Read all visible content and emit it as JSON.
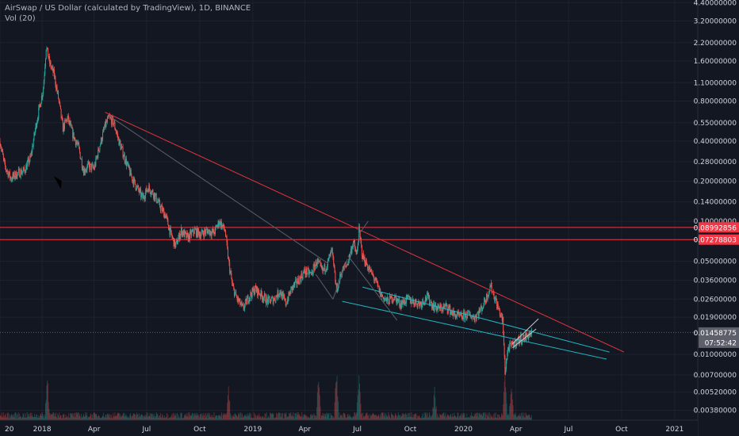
{
  "header": {
    "symbol": "AirSwap / US Dollar (calculated by TradingView), 1D, BINANCE",
    "volume_indicator": "Vol (20)"
  },
  "colors": {
    "background": "#131722",
    "grid": "#1e222d",
    "up": "#26a69a",
    "down": "#ef5350",
    "text": "#b2b5be",
    "axis_text": "#d1d4dc",
    "resistance_line": "#e0353b",
    "trend_line": "#b0b3bb",
    "channel_line": "#1fb5c2",
    "price_badge": "#5d606b",
    "level_badge": "#f23645"
  },
  "chart_data": {
    "type": "candlestick",
    "y_scale": "log",
    "ylim": [
      0.0032,
      4.6
    ],
    "xlim": [
      "2017-10-20",
      "2021-02-10"
    ],
    "x_tick_labels": [
      {
        "label": "20",
        "date": "2017-10-20"
      },
      {
        "label": "2018",
        "date": "2018-01-01"
      },
      {
        "label": "Apr",
        "date": "2018-04-01"
      },
      {
        "label": "Jul",
        "date": "2018-07-01"
      },
      {
        "label": "Oct",
        "date": "2018-10-01"
      },
      {
        "label": "2019",
        "date": "2019-01-01"
      },
      {
        "label": "Apr",
        "date": "2019-04-01"
      },
      {
        "label": "Jul",
        "date": "2019-07-01"
      },
      {
        "label": "Oct",
        "date": "2019-10-01"
      },
      {
        "label": "2020",
        "date": "2020-01-01"
      },
      {
        "label": "Apr",
        "date": "2020-04-01"
      },
      {
        "label": "Jul",
        "date": "2020-07-01"
      },
      {
        "label": "Oct",
        "date": "2020-10-01"
      },
      {
        "label": "2021",
        "date": "2021-01-01"
      }
    ],
    "y_tick_labels": [
      {
        "label": "4.40000000",
        "value": 4.4
      },
      {
        "label": "3.20000000",
        "value": 3.2
      },
      {
        "label": "2.20000000",
        "value": 2.2
      },
      {
        "label": "1.60000000",
        "value": 1.6
      },
      {
        "label": "1.10000000",
        "value": 1.1
      },
      {
        "label": "0.80000000",
        "value": 0.8
      },
      {
        "label": "0.55000000",
        "value": 0.55
      },
      {
        "label": "0.40000000",
        "value": 0.4
      },
      {
        "label": "0.28000000",
        "value": 0.28
      },
      {
        "label": "0.20000000",
        "value": 0.2
      },
      {
        "label": "0.14000000",
        "value": 0.14
      },
      {
        "label": "0.10000000",
        "value": 0.1
      },
      {
        "label": "0.05000000",
        "value": 0.05
      },
      {
        "label": "0.03600000",
        "value": 0.036
      },
      {
        "label": "0.02600000",
        "value": 0.026
      },
      {
        "label": "0.01900000",
        "value": 0.019
      },
      {
        "label": "0.01000000",
        "value": 0.01
      },
      {
        "label": "0.00700000",
        "value": 0.007
      },
      {
        "label": "0.00520000",
        "value": 0.0052
      },
      {
        "label": "0.00380000",
        "value": 0.0038
      }
    ],
    "price_path": [
      [
        "2017-10-20",
        0.4
      ],
      [
        "2017-10-28",
        0.26
      ],
      [
        "2017-11-08",
        0.21
      ],
      [
        "2017-11-20",
        0.23
      ],
      [
        "2017-12-01",
        0.24
      ],
      [
        "2017-12-12",
        0.3
      ],
      [
        "2017-12-22",
        0.55
      ],
      [
        "2018-01-03",
        1.0
      ],
      [
        "2018-01-08",
        2.05
      ],
      [
        "2018-01-14",
        1.55
      ],
      [
        "2018-01-22",
        1.25
      ],
      [
        "2018-01-30",
        0.8
      ],
      [
        "2018-02-06",
        0.5
      ],
      [
        "2018-02-14",
        0.6
      ],
      [
        "2018-02-24",
        0.44
      ],
      [
        "2018-03-05",
        0.36
      ],
      [
        "2018-03-14",
        0.24
      ],
      [
        "2018-03-22",
        0.26
      ],
      [
        "2018-04-01",
        0.25
      ],
      [
        "2018-04-10",
        0.36
      ],
      [
        "2018-04-20",
        0.52
      ],
      [
        "2018-04-27",
        0.6
      ],
      [
        "2018-05-05",
        0.55
      ],
      [
        "2018-05-14",
        0.4
      ],
      [
        "2018-05-24",
        0.3
      ],
      [
        "2018-06-04",
        0.22
      ],
      [
        "2018-06-14",
        0.18
      ],
      [
        "2018-06-24",
        0.15
      ],
      [
        "2018-07-04",
        0.18
      ],
      [
        "2018-07-14",
        0.16
      ],
      [
        "2018-07-24",
        0.13
      ],
      [
        "2018-08-03",
        0.11
      ],
      [
        "2018-08-12",
        0.08
      ],
      [
        "2018-08-20",
        0.065
      ],
      [
        "2018-08-30",
        0.085
      ],
      [
        "2018-09-10",
        0.075
      ],
      [
        "2018-09-22",
        0.085
      ],
      [
        "2018-10-02",
        0.08
      ],
      [
        "2018-10-14",
        0.085
      ],
      [
        "2018-10-26",
        0.082
      ],
      [
        "2018-11-04",
        0.1
      ],
      [
        "2018-11-14",
        0.085
      ],
      [
        "2018-11-20",
        0.05
      ],
      [
        "2018-11-27",
        0.032
      ],
      [
        "2018-12-05",
        0.026
      ],
      [
        "2018-12-15",
        0.022
      ],
      [
        "2018-12-25",
        0.027
      ],
      [
        "2019-01-05",
        0.031
      ],
      [
        "2019-01-16",
        0.028
      ],
      [
        "2019-01-27",
        0.025
      ],
      [
        "2019-02-07",
        0.026
      ],
      [
        "2019-02-17",
        0.03
      ],
      [
        "2019-02-27",
        0.024
      ],
      [
        "2019-03-09",
        0.031
      ],
      [
        "2019-03-21",
        0.036
      ],
      [
        "2019-04-01",
        0.042
      ],
      [
        "2019-04-12",
        0.04
      ],
      [
        "2019-04-22",
        0.05
      ],
      [
        "2019-05-02",
        0.042
      ],
      [
        "2019-05-10",
        0.048
      ],
      [
        "2019-05-18",
        0.06
      ],
      [
        "2019-05-26",
        0.03
      ],
      [
        "2019-06-04",
        0.042
      ],
      [
        "2019-06-14",
        0.048
      ],
      [
        "2019-06-24",
        0.07
      ],
      [
        "2019-06-30",
        0.055
      ],
      [
        "2019-07-04",
        0.085
      ],
      [
        "2019-07-10",
        0.055
      ],
      [
        "2019-07-20",
        0.045
      ],
      [
        "2019-08-01",
        0.036
      ],
      [
        "2019-08-11",
        0.028
      ],
      [
        "2019-08-22",
        0.025
      ],
      [
        "2019-09-02",
        0.027
      ],
      [
        "2019-09-14",
        0.024
      ],
      [
        "2019-09-26",
        0.026
      ],
      [
        "2019-10-06",
        0.025
      ],
      [
        "2019-10-18",
        0.024
      ],
      [
        "2019-10-30",
        0.027
      ],
      [
        "2019-11-10",
        0.023
      ],
      [
        "2019-11-22",
        0.022
      ],
      [
        "2019-12-03",
        0.023
      ],
      [
        "2019-12-15",
        0.02
      ],
      [
        "2019-12-27",
        0.019
      ],
      [
        "2020-01-08",
        0.02
      ],
      [
        "2020-01-20",
        0.019
      ],
      [
        "2020-02-01",
        0.022
      ],
      [
        "2020-02-10",
        0.027
      ],
      [
        "2020-02-17",
        0.033
      ],
      [
        "2020-02-24",
        0.027
      ],
      [
        "2020-03-03",
        0.021
      ],
      [
        "2020-03-09",
        0.018
      ],
      [
        "2020-03-13",
        0.0075
      ],
      [
        "2020-03-18",
        0.011
      ],
      [
        "2020-03-28",
        0.012
      ],
      [
        "2020-04-08",
        0.013
      ],
      [
        "2020-04-18",
        0.0135
      ],
      [
        "2020-04-28",
        0.0146
      ]
    ],
    "volume_spikes": [
      [
        "2018-01-10",
        0.9
      ],
      [
        "2019-04-25",
        0.8
      ],
      [
        "2019-05-26",
        0.95
      ],
      [
        "2019-07-04",
        0.9
      ],
      [
        "2019-11-12",
        0.5
      ],
      [
        "2020-03-13",
        1.0
      ],
      [
        "2020-03-24",
        0.75
      ],
      [
        "2018-11-20",
        0.55
      ]
    ],
    "horizontal_levels": [
      {
        "value": 0.08992856,
        "label": "0.08992856"
      },
      {
        "value": 0.07278803,
        "label": "0.07278803"
      }
    ],
    "last_price": {
      "value": 0.01458775,
      "label": "0.01458775",
      "countdown": "07:52:42"
    },
    "drawings": [
      {
        "name": "resistance-trendline",
        "color": "#e0353b",
        "from": [
          "2018-04-20",
          0.66
        ],
        "to": [
          "2020-10-05",
          0.0104
        ]
      },
      {
        "name": "upper-channel-line",
        "color": "#1fb5c2",
        "from": [
          "2019-07-10",
          0.032
        ],
        "to": [
          "2020-09-10",
          0.0104
        ]
      },
      {
        "name": "lower-channel-line",
        "color": "#1fb5c2",
        "from": [
          "2019-06-05",
          0.025
        ],
        "to": [
          "2020-09-05",
          0.0092
        ]
      },
      {
        "name": "early-descending-line",
        "color": "#5a5e68",
        "from": [
          "2018-04-27",
          0.62
        ],
        "to": [
          "2019-05-12",
          0.048
        ]
      },
      {
        "name": "channel-bottom-line",
        "color": "#5a5e68",
        "from": [
          "2019-06-15",
          0.055
        ],
        "to": [
          "2019-09-08",
          0.018
        ]
      },
      {
        "name": "wedge-line-upper",
        "color": "#c8cad0",
        "from": [
          "2020-03-26",
          0.012
        ],
        "to": [
          "2020-05-10",
          0.0185
        ]
      },
      {
        "name": "wedge-line-lower",
        "color": "#c8cad0",
        "from": [
          "2020-03-26",
          0.0112
        ],
        "to": [
          "2020-05-06",
          0.0155
        ]
      },
      {
        "name": "spike-line-a",
        "color": "#5a5e68",
        "from": [
          "2019-04-20",
          0.04
        ],
        "to": [
          "2019-05-20",
          0.026
        ]
      },
      {
        "name": "spike-line-b",
        "color": "#5a5e68",
        "from": [
          "2019-05-20",
          0.026
        ],
        "to": [
          "2019-06-14",
          0.052
        ]
      },
      {
        "name": "spike-line-c",
        "color": "#5a5e68",
        "from": [
          "2019-07-04",
          0.08
        ],
        "to": [
          "2019-07-20",
          0.1
        ]
      }
    ],
    "arrow_marker": {
      "at": [
        "2018-01-28",
        0.19
      ],
      "color": "#000000"
    }
  }
}
